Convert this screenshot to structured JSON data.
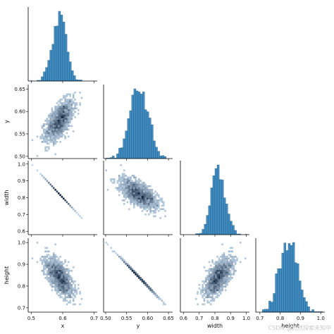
{
  "chart_data": {
    "type": "pairplot",
    "variables": [
      "x",
      "y",
      "width",
      "height"
    ],
    "layout": "lower-triangle (corner)",
    "diag_kind": "histogram",
    "offdiag_kind": "2d histogram (heatmap)",
    "color": "#1f77b4",
    "cell_color_light": "#c9def0",
    "cell_color_dark": "#0b1f3a",
    "axes": {
      "x": {
        "lim": [
          0.49,
          0.71
        ],
        "ticks": [
          "0.5",
          "0.6",
          "0.7"
        ],
        "tick_values": [
          0.5,
          0.6,
          0.7
        ]
      },
      "y": {
        "lim": [
          0.495,
          0.66
        ],
        "ticks": [
          "0.50",
          "0.55",
          "0.60",
          "0.65"
        ],
        "tick_values": [
          0.5,
          0.55,
          0.6,
          0.65
        ]
      },
      "width": {
        "lim": [
          0.58,
          1.02
        ],
        "ticks": [
          "0.6",
          "0.7",
          "0.8",
          "0.9",
          "1.0"
        ],
        "tick_values": [
          0.6,
          0.7,
          0.8,
          0.9,
          1.0
        ]
      },
      "height": {
        "lim": [
          0.68,
          1.02
        ],
        "ticks": [
          "0.7",
          "0.8",
          "0.9",
          "1.0"
        ],
        "tick_values": [
          0.7,
          0.8,
          0.9,
          1.0
        ]
      }
    },
    "distributions": {
      "x": {
        "mean": 0.59,
        "sd": 0.022
      },
      "y": {
        "mean": 0.58,
        "sd": 0.022
      },
      "width": {
        "mean": 0.82,
        "sd": 0.038
      },
      "height": {
        "mean": 0.85,
        "sd": 0.045
      }
    },
    "relationships": [
      {
        "x": "x",
        "y": "y",
        "correlation": "positive",
        "density_peak": [
          0.59,
          0.58
        ]
      },
      {
        "x": "x",
        "y": "width",
        "correlation": "perfect negative",
        "line": [
          [
            0.5,
            1.0
          ],
          [
            0.7,
            0.6
          ]
        ]
      },
      {
        "x": "y",
        "y": "width",
        "correlation": "negative",
        "density_peak": [
          0.58,
          0.82
        ]
      },
      {
        "x": "x",
        "y": "height",
        "correlation": "negative",
        "density_peak": [
          0.59,
          0.85
        ]
      },
      {
        "x": "y",
        "y": "height",
        "correlation": "perfect negative",
        "line": [
          [
            0.5,
            1.0
          ],
          [
            0.65,
            0.7
          ]
        ]
      },
      {
        "x": "width",
        "y": "height",
        "correlation": "positive",
        "density_peak": [
          0.82,
          0.85
        ]
      }
    ]
  },
  "watermark": "CSDN @仍然探索未知中"
}
